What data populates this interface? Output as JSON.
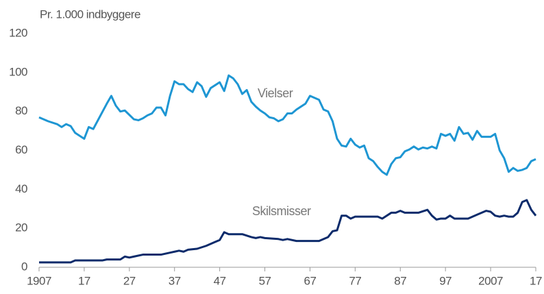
{
  "chart_data": {
    "type": "line",
    "ylabel": "Pr. 1.000 indbyggere",
    "annotations": [
      "Vielser",
      "Skilsmisser"
    ],
    "xlim": [
      1907,
      2017
    ],
    "xticks": [
      1907,
      {
        "value": 1917,
        "label": "17"
      },
      {
        "value": 1927,
        "label": "27"
      },
      {
        "value": 1937,
        "label": "37"
      },
      {
        "value": 1947,
        "label": "47"
      },
      {
        "value": 1957,
        "label": "57"
      },
      {
        "value": 1967,
        "label": "67"
      },
      {
        "value": 1977,
        "label": "77"
      },
      {
        "value": 1987,
        "label": "87"
      },
      {
        "value": 1997,
        "label": "97"
      },
      2007,
      {
        "value": 2017,
        "label": "17"
      }
    ],
    "ylim": [
      0,
      120
    ],
    "yticks": [
      0,
      20,
      40,
      60,
      80,
      100,
      120
    ],
    "grid": false,
    "series": [
      {
        "name": "Vielser",
        "color": "#1e96d3",
        "x": [
          1907,
          1909,
          1911,
          1912,
          1913,
          1914,
          1915,
          1917,
          1918,
          1919,
          1922,
          1923,
          1924,
          1925,
          1926,
          1928,
          1929,
          1930,
          1931,
          1932,
          1933,
          1934,
          1935,
          1936,
          1937,
          1938,
          1939,
          1940,
          1941,
          1942,
          1943,
          1944,
          1945,
          1946,
          1947,
          1948,
          1949,
          1950,
          1951,
          1952,
          1953,
          1954,
          1955,
          1956,
          1957,
          1958,
          1959,
          1960,
          1961,
          1962,
          1963,
          1964,
          1965,
          1966,
          1967,
          1968,
          1969,
          1970,
          1971,
          1972,
          1973,
          1974,
          1975,
          1976,
          1977,
          1978,
          1979,
          1980,
          1981,
          1982,
          1983,
          1984,
          1985,
          1986,
          1987,
          1988,
          1989,
          1990,
          1991,
          1992,
          1993,
          1994,
          1995,
          1996,
          1997,
          1998,
          1999,
          2000,
          2001,
          2002,
          2003,
          2004,
          2005,
          2006,
          2007,
          2008,
          2009,
          2010,
          2011,
          2012,
          2013,
          2014,
          2015,
          2016,
          2017
        ],
        "values": [
          77,
          75,
          73.5,
          72,
          73.5,
          72.5,
          69,
          66,
          72,
          71,
          84,
          88,
          83,
          80,
          80.5,
          76,
          75.5,
          76.5,
          78,
          79,
          82,
          82,
          78,
          88,
          95.5,
          94,
          94,
          91.5,
          90,
          95,
          93,
          87.5,
          92,
          93.5,
          95,
          90.5,
          98.5,
          97,
          94,
          89,
          91,
          85,
          82.5,
          80.5,
          79,
          77,
          76.5,
          75,
          76,
          79,
          79,
          81,
          82.5,
          84,
          88,
          87,
          86,
          81,
          80,
          75,
          66,
          62.5,
          62,
          66,
          63,
          61.5,
          62.5,
          56,
          54.5,
          51.5,
          49,
          47.5,
          53,
          56,
          56.5,
          59.5,
          60.5,
          62,
          60.5,
          61.5,
          61,
          62,
          61,
          68.5,
          67.5,
          68.5,
          65,
          72,
          68.5,
          69,
          65.5,
          70,
          67,
          67,
          67,
          68.5,
          60,
          56,
          49,
          51,
          49.5,
          50,
          51,
          54.5,
          55.5
        ]
      },
      {
        "name": "Skilsmisser",
        "color": "#0c2b6b",
        "x": [
          1907,
          1914,
          1915,
          1921,
          1922,
          1925,
          1926,
          1927,
          1928,
          1930,
          1934,
          1936,
          1938,
          1939,
          1940,
          1942,
          1944,
          1946,
          1947,
          1948,
          1949,
          1952,
          1954,
          1955,
          1956,
          1957,
          1960,
          1961,
          1962,
          1964,
          1969,
          1971,
          1972,
          1973,
          1974,
          1975,
          1976,
          1977,
          1982,
          1983,
          1985,
          1986,
          1987,
          1988,
          1991,
          1993,
          1994,
          1995,
          1996,
          1997,
          1998,
          1999,
          2002,
          2003,
          2004,
          2006,
          2007,
          2008,
          2009,
          2010,
          2011,
          2012,
          2013,
          2014,
          2015,
          2016,
          2017
        ],
        "values": [
          2.5,
          2.5,
          3.5,
          3.5,
          4,
          4,
          5.5,
          5,
          5.5,
          6.5,
          6.5,
          7.5,
          8.5,
          8,
          9,
          9.5,
          11,
          13,
          14,
          18,
          17,
          17,
          15.5,
          15,
          15.5,
          15,
          14.5,
          14,
          14.5,
          13.5,
          13.5,
          15.5,
          18.5,
          19,
          26.5,
          26.5,
          25,
          26,
          26,
          25,
          28,
          28,
          29,
          28,
          28,
          29.5,
          26.5,
          24.5,
          25,
          25,
          26.5,
          25,
          25,
          26,
          27,
          29,
          28.5,
          26.5,
          26,
          26.5,
          26,
          26,
          28,
          33.5,
          34.5,
          29.5,
          26.5
        ]
      }
    ]
  }
}
